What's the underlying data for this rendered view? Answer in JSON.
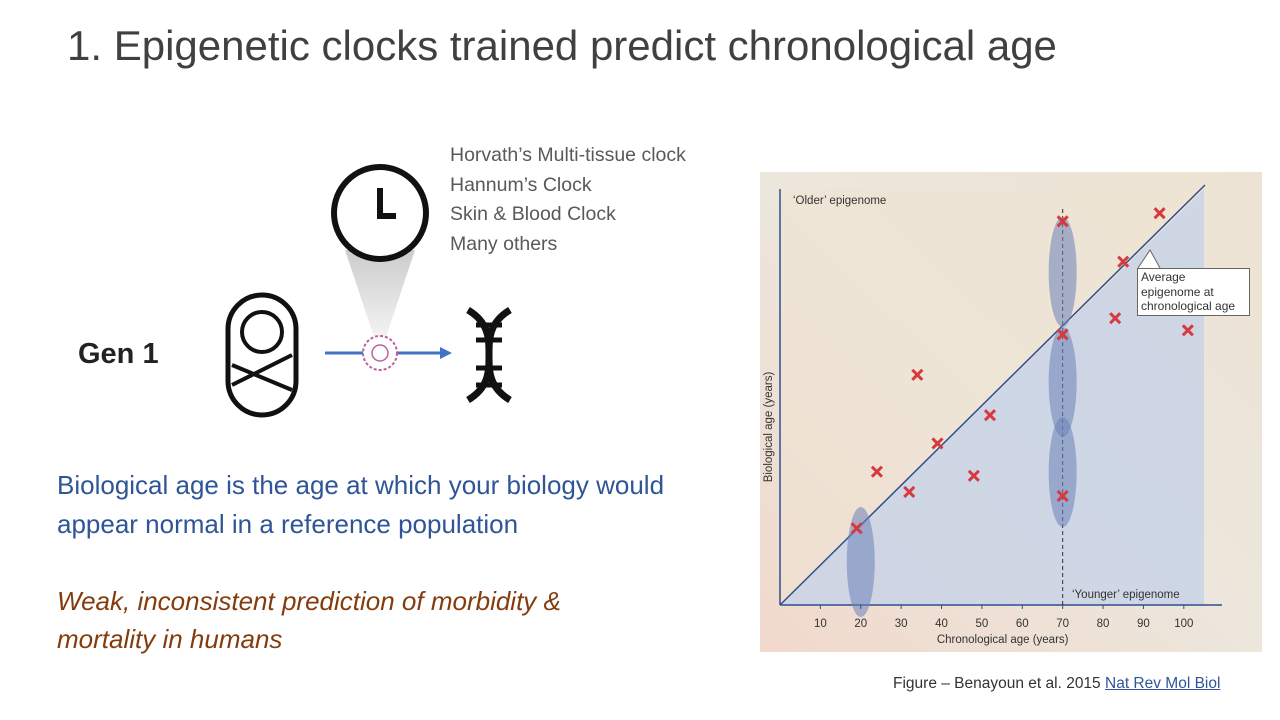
{
  "title": "1. Epigenetic clocks trained predict chronological age",
  "clock_list": [
    "Horvath’s Multi-tissue clock",
    "Hannum’s Clock",
    "Skin & Blood Clock",
    "Many others"
  ],
  "gen_label": "Gen 1",
  "definition": "Biological age is the age at which your biology would appear normal in a reference population",
  "note": "Weak, inconsistent prediction of morbidity & mortality in humans",
  "source": "Figure – Benayoun et al. 2015",
  "source_link": "Nat Rev Mol Biol",
  "chart_data": {
    "type": "scatter",
    "x_label": "Chronological age (years)",
    "y_label": "Biological age (years)",
    "annotations": [
      "‘Older’ epigenome",
      "‘Younger’ epigenome",
      "Average epigenome at chronological age"
    ],
    "x": [
      70,
      94,
      85,
      83,
      101,
      70,
      34,
      52,
      39,
      24,
      32,
      48,
      70,
      19
    ],
    "values": [
      95,
      97,
      85,
      71,
      68,
      67,
      57,
      47,
      40,
      33,
      28,
      32,
      27,
      19
    ],
    "color": "#d63a3f",
    "xlim": [
      0,
      105
    ],
    "ylim": [
      0,
      103
    ],
    "xticks": [
      10,
      20,
      30,
      40,
      50,
      60,
      70,
      80,
      90,
      100
    ],
    "vline": 70
  }
}
